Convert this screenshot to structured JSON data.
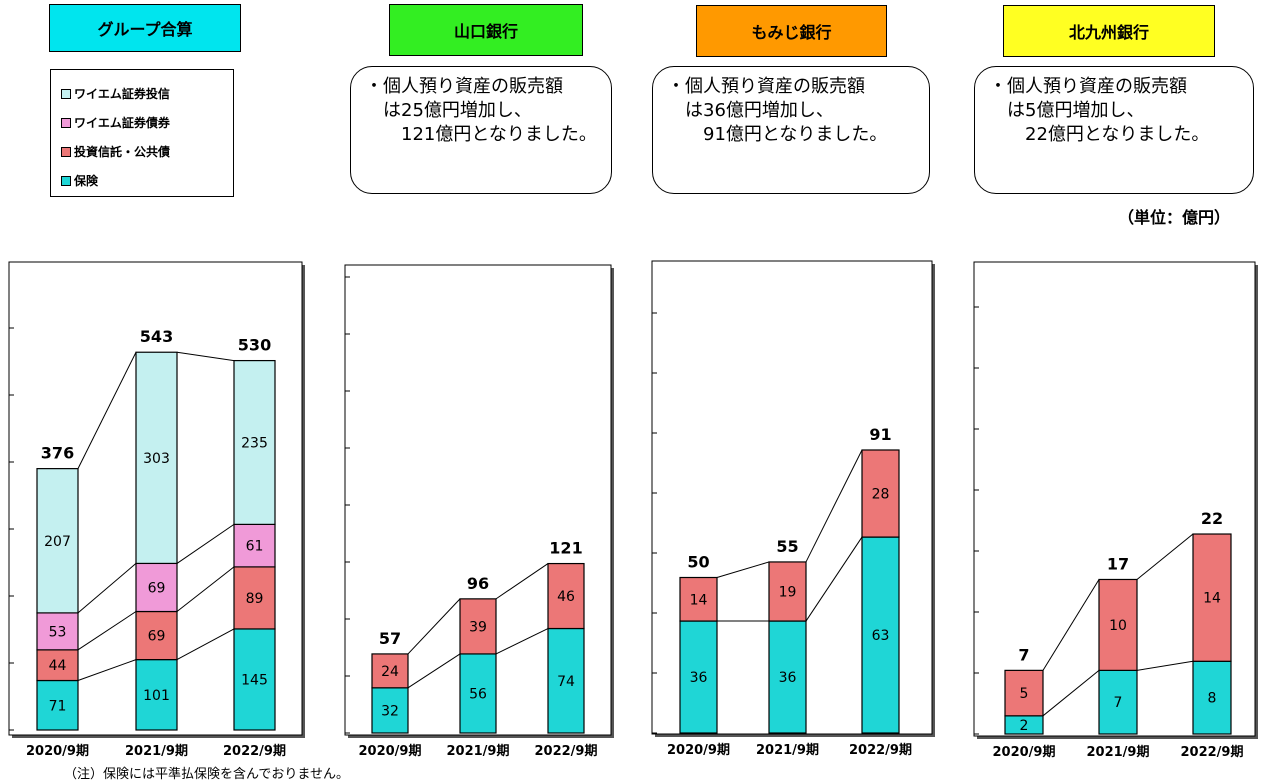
{
  "titles": {
    "group": "グループ合算",
    "yamaguchi": "山口銀行",
    "momiji": "もみじ銀行",
    "kitakyushu": "北九州銀行"
  },
  "colors": {
    "group_title_bg": "#00e5ee",
    "yamaguchi_title_bg": "#33ee22",
    "momiji_title_bg": "#ff9900",
    "kitakyushu_title_bg": "#ffff22",
    "series_insurance": "#1fd6d6",
    "series_trust_bonds": "#ec7777",
    "series_ym_bonds": "#f09ad8",
    "series_ym_trusts": "#c4f0f0"
  },
  "legend": [
    {
      "label": "ワイエム証券投信",
      "color": "#c4f0f0"
    },
    {
      "label": "ワイエム証券債券",
      "color": "#f09ad8"
    },
    {
      "label": "投資信託・公共債",
      "color": "#ec7777"
    },
    {
      "label": "保険",
      "color": "#1fd6d6"
    }
  ],
  "callouts": {
    "yamaguchi": [
      "・個人預り資産の販売額",
      "　は25億円増加し、",
      "　　121億円となりました。"
    ],
    "momiji": [
      "・個人預り資産の販売額",
      "　は36億円増加し、",
      "　　91億円となりました。"
    ],
    "kitakyushu": [
      "・個人預り資産の販売額",
      "　は5億円増加し、",
      "　　22億円となりました。"
    ]
  },
  "unit": "（単位：億円）",
  "note": "（注）保険には平準払保険を含んでおりません。",
  "chart_data": [
    {
      "type": "bar",
      "title": "グループ合算",
      "stacked": true,
      "categories": [
        "2020/9期",
        "2021/9期",
        "2022/9期"
      ],
      "series": [
        {
          "name": "保険",
          "values": [
            71,
            101,
            145
          ]
        },
        {
          "name": "投資信託・公共債",
          "values": [
            44,
            69,
            89
          ]
        },
        {
          "name": "ワイエム証券債券",
          "values": [
            53,
            69,
            61
          ]
        },
        {
          "name": "ワイエム証券投信",
          "values": [
            207,
            303,
            235
          ]
        }
      ],
      "totals": [
        376,
        543,
        530
      ],
      "ylim": [
        0,
        700
      ]
    },
    {
      "type": "bar",
      "title": "山口銀行",
      "stacked": true,
      "categories": [
        "2020/9期",
        "2021/9期",
        "2022/9期"
      ],
      "series": [
        {
          "name": "保険",
          "values": [
            32,
            56,
            74
          ]
        },
        {
          "name": "投資信託・公共債",
          "values": [
            24,
            39,
            46
          ]
        }
      ],
      "totals": [
        57,
        96,
        121
      ],
      "ylim": [
        0,
        160
      ]
    },
    {
      "type": "bar",
      "title": "もみじ銀行",
      "stacked": true,
      "categories": [
        "2020/9期",
        "2021/9期",
        "2022/9期"
      ],
      "series": [
        {
          "name": "保険",
          "values": [
            36,
            36,
            63
          ]
        },
        {
          "name": "投資信託・公共債",
          "values": [
            14,
            19,
            28
          ]
        }
      ],
      "totals": [
        50,
        55,
        91
      ],
      "ylim": [
        0,
        140
      ]
    },
    {
      "type": "bar",
      "title": "北九州銀行",
      "stacked": true,
      "categories": [
        "2020/9期",
        "2021/9期",
        "2022/9期"
      ],
      "series": [
        {
          "name": "保険",
          "values": [
            2,
            7,
            8
          ]
        },
        {
          "name": "投資信託・公共債",
          "values": [
            5,
            10,
            14
          ]
        }
      ],
      "totals": [
        7,
        17,
        22
      ],
      "ylim": [
        0,
        35
      ]
    }
  ]
}
